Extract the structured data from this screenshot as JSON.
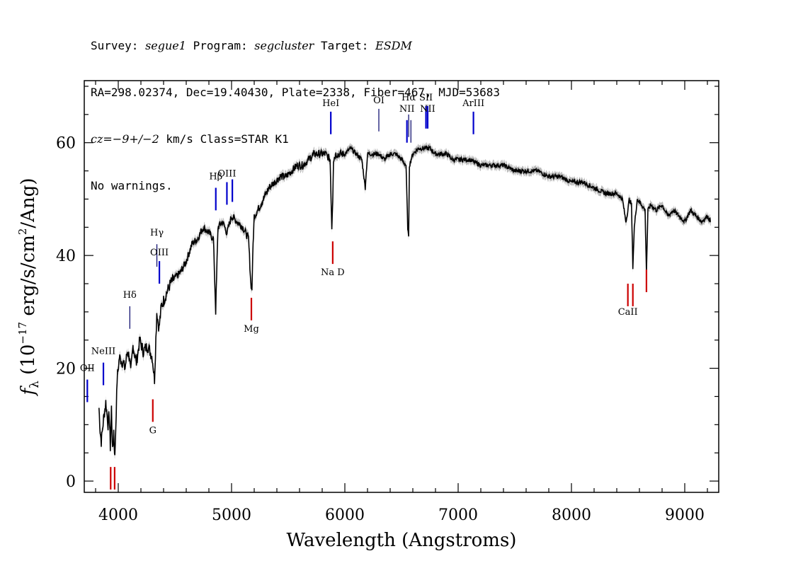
{
  "header": {
    "line1": {
      "survey_label": "Survey: ",
      "survey": "segue1",
      "program_label": " Program: ",
      "program": "segcluster",
      "target_label": " Target: ",
      "target": "ESDM"
    },
    "line2": "RA=298.02374, Dec=19.40430, Plate=2338, Fiber=467, MJD=53683",
    "line3": {
      "cz": "cz=−9+/−2",
      "rest": " km/s Class=STAR K1"
    },
    "line4": "No warnings."
  },
  "chart_data": {
    "type": "line",
    "xlabel": "Wavelength (Angstroms)",
    "ylabel": "f_λ (10^-17 erg/s/cm^2/Ang)",
    "xlim": [
      3700,
      9300
    ],
    "ylim": [
      -2,
      71
    ],
    "xticks": [
      4000,
      5000,
      6000,
      7000,
      8000,
      9000
    ],
    "yticks": [
      0,
      20,
      40,
      60
    ],
    "series": [
      {
        "color": "#000000",
        "x": [
          3830,
          3840,
          3850,
          3870,
          3890,
          3910,
          3920,
          3930,
          3940,
          3950,
          3960,
          3970,
          3990,
          4010,
          4040,
          4060,
          4080,
          4100,
          4110,
          4130,
          4160,
          4190,
          4220,
          4260,
          4300,
          4320,
          4340,
          4360,
          4380,
          4420,
          4460,
          4500,
          4550,
          4600,
          4650,
          4700,
          4750,
          4800,
          4840,
          4860,
          4880,
          4920,
          4960,
          5000,
          5050,
          5100,
          5150,
          5170,
          5180,
          5190,
          5200,
          5230,
          5280,
          5330,
          5380,
          5430,
          5480,
          5530,
          5580,
          5630,
          5680,
          5730,
          5780,
          5830,
          5870,
          5885,
          5893,
          5900,
          5920,
          5960,
          6000,
          6050,
          6100,
          6150,
          6180,
          6200,
          6250,
          6300,
          6350,
          6400,
          6450,
          6500,
          6540,
          6555,
          6563,
          6570,
          6600,
          6650,
          6700,
          6750,
          6800,
          6850,
          6900,
          6950,
          7000,
          7100,
          7200,
          7300,
          7400,
          7500,
          7600,
          7700,
          7800,
          7900,
          8000,
          8100,
          8200,
          8300,
          8400,
          8450,
          8480,
          8498,
          8510,
          8530,
          8542,
          8555,
          8580,
          8620,
          8650,
          8662,
          8675,
          8700,
          8750,
          8800,
          8850,
          8900,
          8950,
          9000,
          9050,
          9100,
          9150,
          9200,
          9230
        ],
        "y": [
          13,
          9,
          7,
          11,
          14,
          10,
          12,
          6,
          13,
          5,
          9,
          4,
          18,
          22,
          21,
          20,
          23,
          22,
          19,
          24,
          21,
          25,
          23,
          24,
          22,
          18,
          30,
          27,
          31,
          33,
          35,
          36,
          37,
          39,
          42,
          43,
          45,
          44,
          43,
          30,
          45,
          46,
          44,
          47,
          46,
          45,
          43,
          35,
          34,
          42,
          47,
          48,
          50,
          52,
          53,
          54,
          54,
          55,
          56,
          56,
          57,
          58,
          58,
          58,
          57,
          45,
          50,
          57,
          58,
          58,
          58,
          59,
          58,
          57,
          52,
          58,
          58,
          58,
          57,
          58,
          58,
          57,
          56,
          45,
          43,
          56,
          58,
          59,
          59,
          59,
          58,
          58,
          58,
          57,
          57,
          57,
          56,
          56,
          56,
          55,
          55,
          55,
          54,
          54,
          53,
          53,
          52,
          51,
          51,
          50,
          46,
          48,
          50,
          49,
          38,
          45,
          50,
          49,
          48,
          37,
          48,
          49,
          48,
          49,
          47,
          48,
          47,
          46,
          48,
          47,
          46,
          47,
          46
        ],
        "error": 0.7
      }
    ],
    "lines": [
      {
        "label": "OII",
        "wave": 3727,
        "y1": 14,
        "y2": 18,
        "color": "#0000cc",
        "label_y": 19.5
      },
      {
        "label": "NeIII",
        "wave": 3869,
        "y1": 17,
        "y2": 21,
        "color": "#0000cc",
        "label_y": 22.5
      },
      {
        "label": "Hδ",
        "wave": 4102,
        "y1": 27,
        "y2": 31,
        "color": "#000066",
        "label_y": 32.5
      },
      {
        "label": "Hγ",
        "wave": 4341,
        "y1": 38,
        "y2": 42,
        "color": "#000066",
        "label_y": 43.5
      },
      {
        "label": "OIII",
        "wave": 4363,
        "y1": 35,
        "y2": 39,
        "color": "#0000cc",
        "label_y": 40
      },
      {
        "label": "Hβ",
        "wave": 4861,
        "y1": 48,
        "y2": 52,
        "color": "#0000cc",
        "label_y": 53.5
      },
      {
        "label": "OIII",
        "wave": 4959,
        "y1": 49,
        "y2": 53,
        "color": "#0000cc",
        "label_y": 54
      },
      {
        "label": "",
        "wave": 5007,
        "y1": 49.5,
        "y2": 53.5,
        "color": "#0000cc"
      },
      {
        "label": "HeI",
        "wave": 5876,
        "y1": 61.5,
        "y2": 65.5,
        "color": "#0000cc",
        "label_y": 66.5
      },
      {
        "label": "OI",
        "wave": 6300,
        "y1": 62,
        "y2": 66,
        "color": "#000066",
        "label_y": 67
      },
      {
        "label": "NII",
        "wave": 6548,
        "y1": 60,
        "y2": 64,
        "color": "#0000cc",
        "label_y": 65.5
      },
      {
        "label": "Hα",
        "wave": 6563,
        "y1": 61,
        "y2": 65,
        "color": "#000066",
        "label_y": 67.5
      },
      {
        "label": "",
        "wave": 6583,
        "y1": 60,
        "y2": 64,
        "color": "#000066"
      },
      {
        "label": "SII",
        "wave": 6716,
        "y1": 62.5,
        "y2": 66.5,
        "color": "#0000cc",
        "label_y": 67.5
      },
      {
        "label": "NII",
        "wave": 6731,
        "y1": 62.5,
        "y2": 66.5,
        "color": "#0000cc",
        "label_y": 65.5
      },
      {
        "label": "ArIII",
        "wave": 7135,
        "y1": 61.5,
        "y2": 65.5,
        "color": "#0000cc",
        "label_y": 66.5
      },
      {
        "label": "G",
        "wave": 4305,
        "y1": 10.5,
        "y2": 14.5,
        "color": "#cc0000",
        "label_y": 8.5
      },
      {
        "label": "",
        "wave": 3933,
        "y1": -1.5,
        "y2": 2.5,
        "color": "#cc0000"
      },
      {
        "label": "",
        "wave": 3968,
        "y1": -1.5,
        "y2": 2.5,
        "color": "#cc0000"
      },
      {
        "label": "Mg",
        "wave": 5175,
        "y1": 28.5,
        "y2": 32.5,
        "color": "#cc0000",
        "label_y": 26.5
      },
      {
        "label": "Na D",
        "wave": 5893,
        "y1": 38.5,
        "y2": 42.5,
        "color": "#cc0000",
        "label_y": 36.5
      },
      {
        "label": "CaII",
        "wave": 8498,
        "y1": 31,
        "y2": 35,
        "color": "#cc0000",
        "label_y": 29.5
      },
      {
        "label": "",
        "wave": 8542,
        "y1": 31,
        "y2": 35,
        "color": "#cc0000"
      },
      {
        "label": "",
        "wave": 8662,
        "y1": 33.5,
        "y2": 37.5,
        "color": "#cc0000"
      }
    ]
  }
}
